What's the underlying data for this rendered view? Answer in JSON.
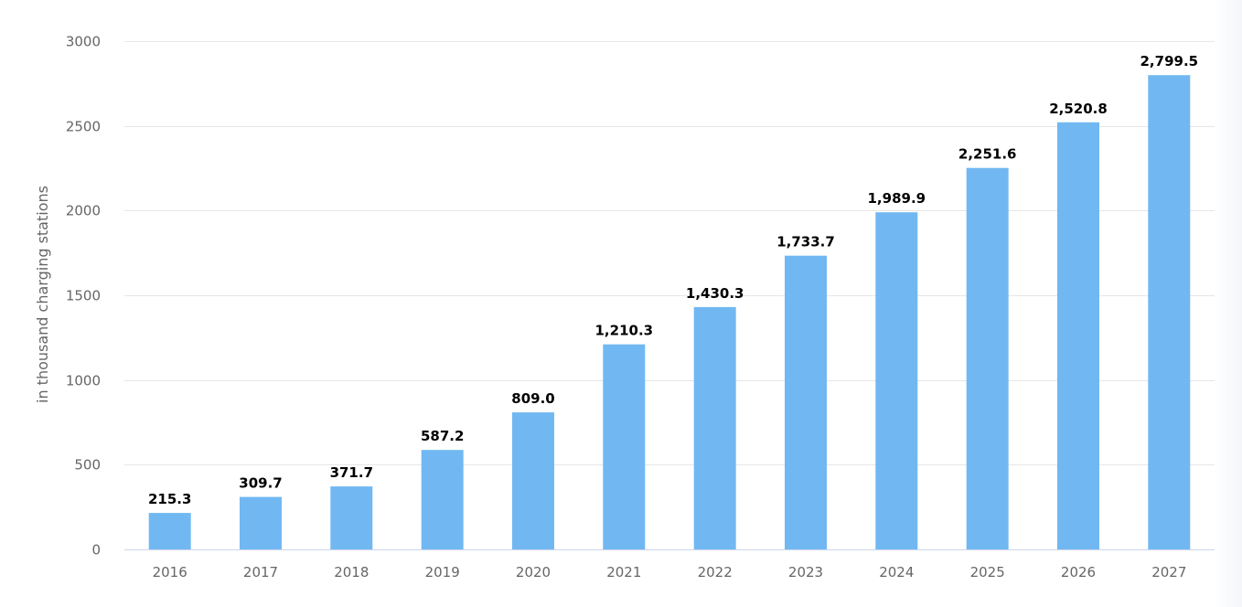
{
  "chart_data": {
    "type": "bar",
    "categories": [
      "2016",
      "2017",
      "2018",
      "2019",
      "2020",
      "2021",
      "2022",
      "2023",
      "2024",
      "2025",
      "2026",
      "2027"
    ],
    "values": [
      215.3,
      309.7,
      371.7,
      587.2,
      809.0,
      1210.3,
      1430.3,
      1733.7,
      1989.9,
      2251.6,
      2520.8,
      2799.5
    ],
    "data_labels": [
      "215.3",
      "309.7",
      "371.7",
      "587.2",
      "809.0",
      "1,210.3",
      "1,430.3",
      "1,733.7",
      "1,989.9",
      "2,251.6",
      "2,520.8",
      "2,799.5"
    ],
    "title": "",
    "xlabel": "",
    "ylabel": "in thousand charging stations",
    "ylim": [
      0,
      3000
    ],
    "yticks": [
      "0",
      "500",
      "1000",
      "1500",
      "2000",
      "2500",
      "3000"
    ],
    "grid": true,
    "legend": "none",
    "bar_color": "#71b8f2"
  }
}
